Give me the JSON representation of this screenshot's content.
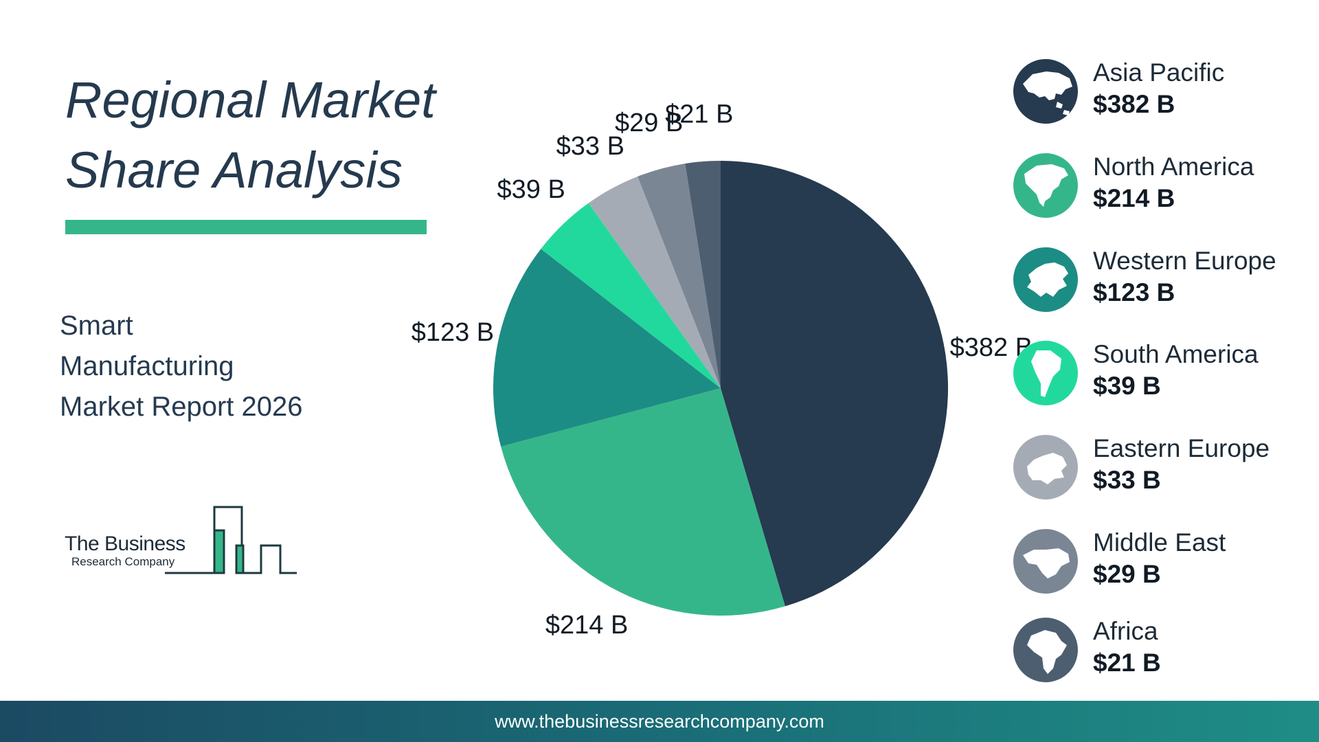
{
  "title": {
    "line1": "Regional Market",
    "line2": "Share Analysis"
  },
  "subtitle": {
    "line1": "Smart",
    "line2": "Manufacturing",
    "line3": "Market Report 2026"
  },
  "logo": {
    "line1": "The Business",
    "line2": "Research Company"
  },
  "footer": {
    "url": "www.thebusinessresearchcompany.com"
  },
  "colors": {
    "dark_navy": "#263a50",
    "green": "#35b68a",
    "teal": "#1c8d84",
    "mint": "#22d99d",
    "light_gray": "#a5abb5",
    "slate_gray": "#7a8694",
    "dark_slate": "#4d5e71",
    "accent_bar": "#35b68a"
  },
  "chart_data": {
    "type": "pie",
    "unit": "$ B",
    "categories": [
      "Asia Pacific",
      "North America",
      "Western Europe",
      "South America",
      "Eastern Europe",
      "Middle East",
      "Africa"
    ],
    "values": [
      382,
      214,
      123,
      39,
      33,
      29,
      21
    ],
    "data_labels": [
      "$382 B",
      "$214 B",
      "$123 B",
      "$39 B",
      "$33 B",
      "$29 B",
      "$21 B"
    ],
    "colors": [
      "#263a50",
      "#35b68a",
      "#1c8d84",
      "#22d99d",
      "#a5abb5",
      "#7a8694",
      "#4d5e71"
    ],
    "start": "12 o'clock",
    "direction": "clockwise",
    "legend_position": "right"
  },
  "legend": [
    {
      "name": "Asia Pacific",
      "value": "$382 B",
      "icon": "asia-map-icon"
    },
    {
      "name": "North America",
      "value": "$214 B",
      "icon": "north-america-map-icon"
    },
    {
      "name": "Western Europe",
      "value": "$123 B",
      "icon": "western-europe-map-icon"
    },
    {
      "name": "South America",
      "value": "$39 B",
      "icon": "south-america-map-icon"
    },
    {
      "name": "Eastern Europe",
      "value": "$33 B",
      "icon": "eastern-europe-map-icon"
    },
    {
      "name": "Middle East",
      "value": "$29 B",
      "icon": "middle-east-map-icon"
    },
    {
      "name": "Africa",
      "value": "$21 B",
      "icon": "africa-map-icon"
    }
  ]
}
